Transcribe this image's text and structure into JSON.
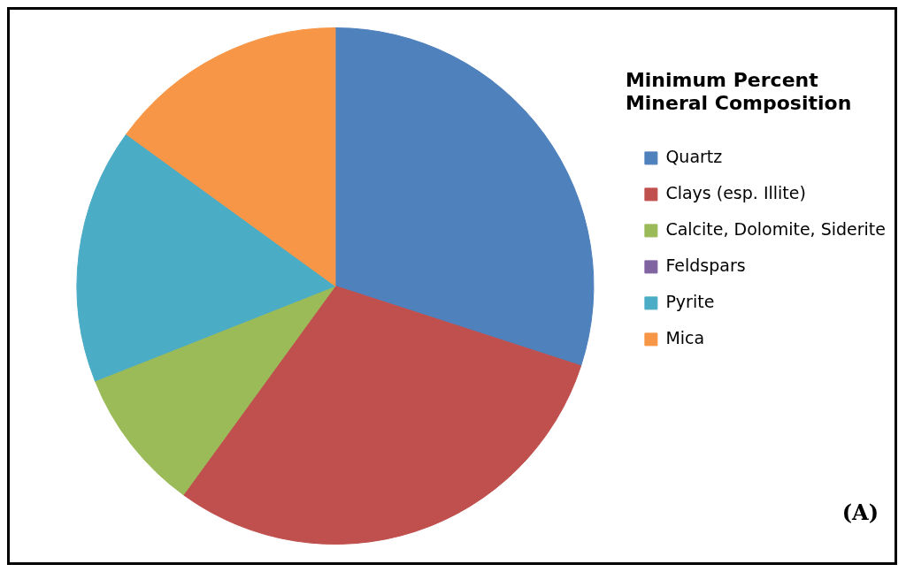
{
  "chart_data": {
    "type": "pie",
    "legend_title": "Minimum Percent Mineral Composition",
    "categories": [
      "Quartz",
      "Clays (esp. Illite)",
      "Calcite, Dolomite, Siderite",
      "Feldspars",
      "Pyrite",
      "Mica"
    ],
    "values": [
      30,
      30,
      9,
      0,
      16,
      15
    ],
    "colors": [
      "#4f81bd",
      "#c0504d",
      "#9bbb59",
      "#8064a2",
      "#4bacc6",
      "#f79646"
    ],
    "legend": "right",
    "annotations": [
      "(A)"
    ]
  }
}
